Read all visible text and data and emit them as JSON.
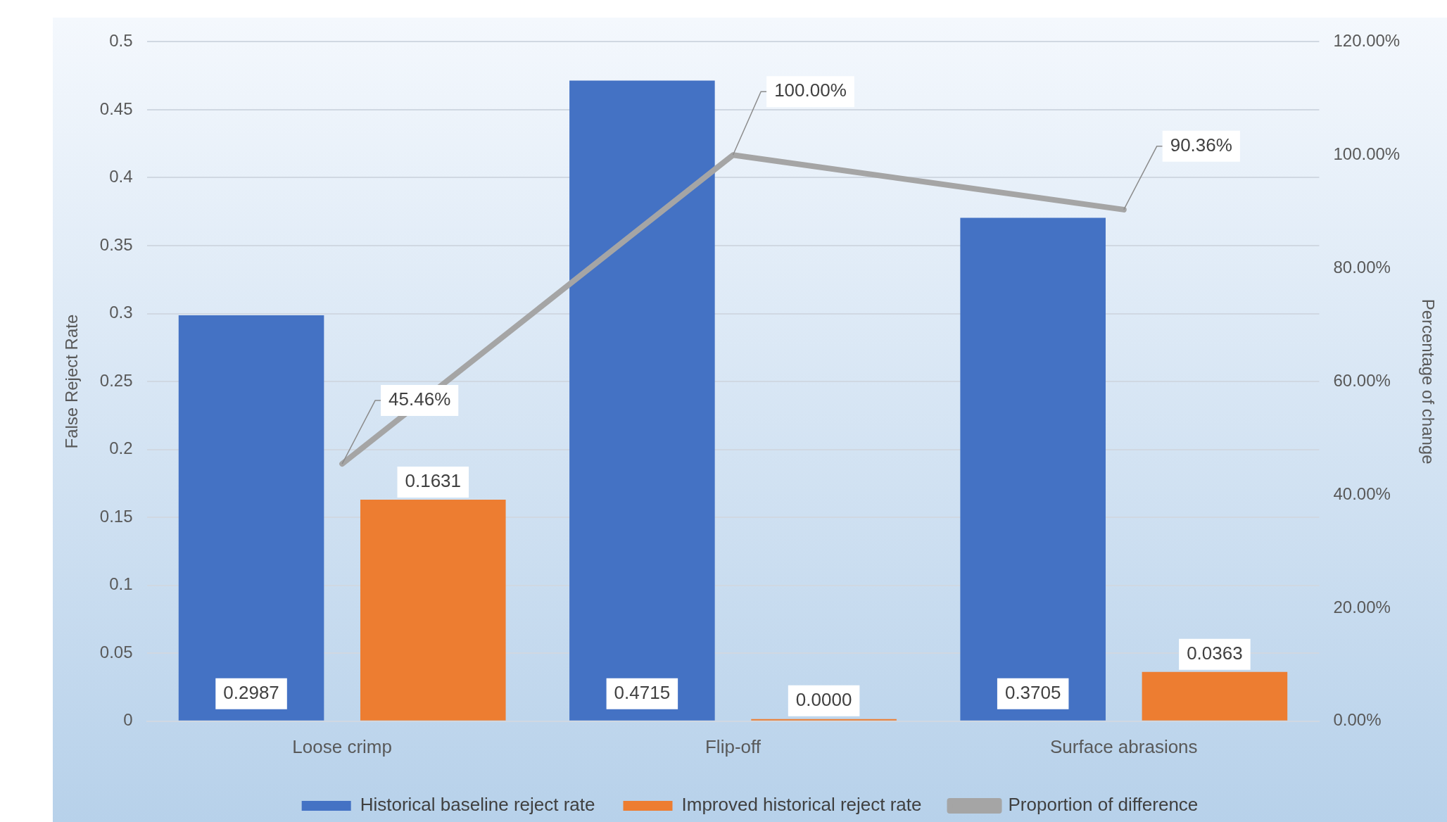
{
  "chart_data": {
    "type": "bar",
    "xlabel": null,
    "ylabel": "False Reject Rate",
    "y2label": "Percentage of change",
    "categories": [
      "Loose crimp",
      "Flip-off",
      "Surface abrasions"
    ],
    "series": [
      {
        "name": "Historical baseline reject rate",
        "color": "#4472c4",
        "values": [
          0.2987,
          0.4715,
          0.3705
        ],
        "value_labels": [
          "0.2987",
          "0.4715",
          "0.3705"
        ]
      },
      {
        "name": "Improved historical reject rate",
        "color": "#ed7d31",
        "values": [
          0.1631,
          0,
          0.0363
        ],
        "value_labels": [
          "0.1631",
          "0.0000",
          "0.0363"
        ]
      },
      {
        "name": "Proportion of difference",
        "type": "line",
        "axis": "y2",
        "color": "#a5a5a5",
        "values": [
          45.46,
          100,
          90.36
        ],
        "value_labels": [
          "45.46%",
          "100.00%",
          "90.36%"
        ]
      }
    ],
    "ylim": [
      0,
      0.5
    ],
    "yticks": [
      0,
      0.05,
      0.1,
      0.15,
      0.2,
      0.25,
      0.3,
      0.35,
      0.4,
      0.45,
      0.5
    ],
    "y2lim": [
      0,
      120
    ],
    "y2ticks": [
      {
        "value": 0,
        "label": "0.00%"
      },
      {
        "value": 20,
        "label": "20.00%"
      },
      {
        "value": 40,
        "label": "40.00%"
      },
      {
        "value": 60,
        "label": "60.00%"
      },
      {
        "value": 80,
        "label": "80.00%"
      },
      {
        "value": 100,
        "label": "100.00%"
      },
      {
        "value": 120,
        "label": "120.00%"
      }
    ],
    "grid": "y",
    "legend": "bottom",
    "marker": "none"
  }
}
